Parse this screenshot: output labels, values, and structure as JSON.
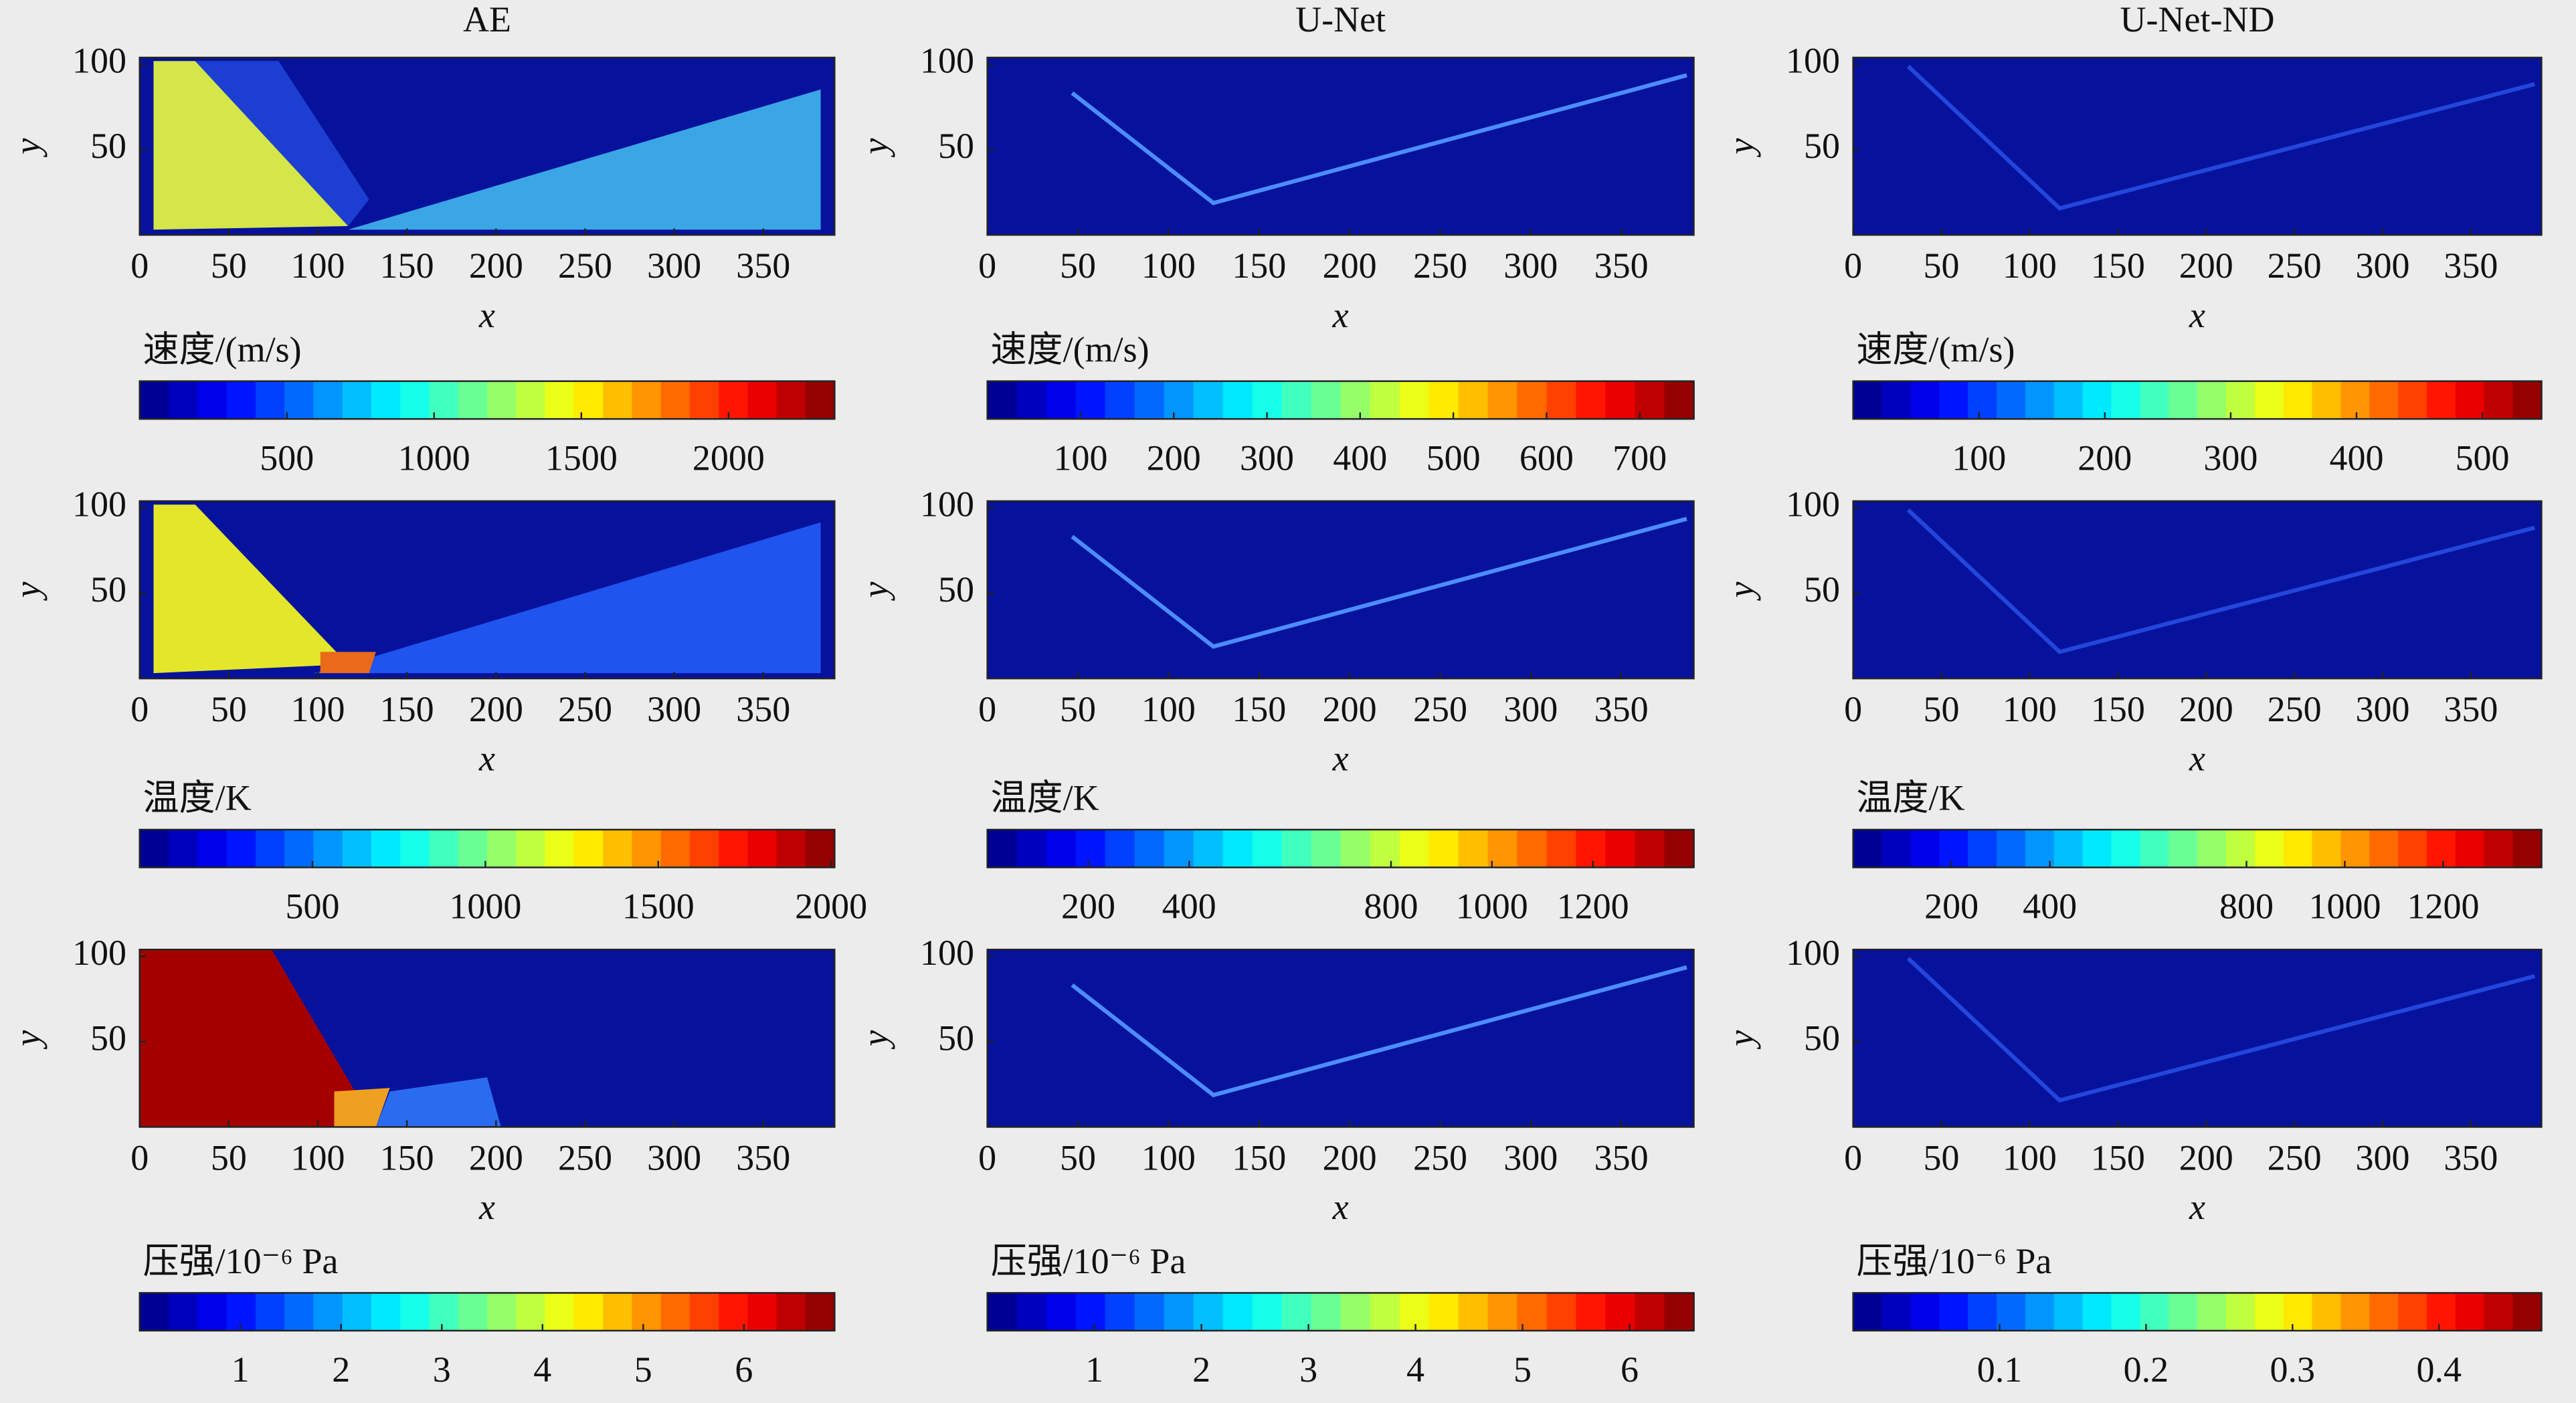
{
  "chart_data": [
    {
      "type": "heatmap",
      "title": "AE",
      "xlabel": "x",
      "ylabel": "y",
      "xlim": [
        0,
        390
      ],
      "xticks": [
        0,
        50,
        100,
        150,
        200,
        250,
        300,
        350
      ],
      "ylim": [
        0,
        104
      ],
      "yticks": [
        50,
        100
      ],
      "colorbar": {
        "label": "速度/(m/s)",
        "colormap": "jet",
        "lim": [
          0,
          2360
        ],
        "ticks": [
          500,
          1000,
          1500,
          2000
        ]
      }
    },
    {
      "type": "heatmap",
      "title": "U-Net",
      "xlabel": "x",
      "ylabel": "y",
      "xlim": [
        0,
        390
      ],
      "xticks": [
        0,
        50,
        100,
        150,
        200,
        250,
        300,
        350
      ],
      "ylim": [
        0,
        104
      ],
      "yticks": [
        50,
        100
      ],
      "colorbar": {
        "label": "速度/(m/s)",
        "colormap": "jet",
        "lim": [
          0,
          758
        ],
        "ticks": [
          100,
          200,
          300,
          400,
          500,
          600,
          700
        ]
      }
    },
    {
      "type": "heatmap",
      "title": "U-Net-ND",
      "xlabel": "x",
      "ylabel": "y",
      "xlim": [
        0,
        390
      ],
      "xticks": [
        0,
        50,
        100,
        150,
        200,
        250,
        300,
        350
      ],
      "ylim": [
        0,
        104
      ],
      "yticks": [
        50,
        100
      ],
      "colorbar": {
        "label": "速度/(m/s)",
        "colormap": "jet",
        "lim": [
          0,
          547
        ],
        "ticks": [
          100,
          200,
          300,
          400,
          500
        ]
      }
    },
    {
      "type": "heatmap",
      "xlabel": "x",
      "ylabel": "y",
      "xlim": [
        0,
        390
      ],
      "xticks": [
        0,
        50,
        100,
        150,
        200,
        250,
        300,
        350
      ],
      "ylim": [
        0,
        104
      ],
      "yticks": [
        50,
        100
      ],
      "colorbar": {
        "label": "温度/K",
        "colormap": "jet",
        "lim": [
          0,
          2010
        ],
        "ticks": [
          500,
          1000,
          1500,
          2000
        ]
      }
    },
    {
      "type": "heatmap",
      "xlabel": "x",
      "ylabel": "y",
      "xlim": [
        0,
        390
      ],
      "xticks": [
        0,
        50,
        100,
        150,
        200,
        250,
        300,
        350
      ],
      "ylim": [
        0,
        104
      ],
      "yticks": [
        50,
        100
      ],
      "colorbar": {
        "label": "温度/K",
        "colormap": "jet",
        "lim": [
          0,
          1400
        ],
        "ticks": [
          200,
          400,
          800,
          1000,
          1200
        ]
      }
    },
    {
      "type": "heatmap",
      "xlabel": "x",
      "ylabel": "y",
      "xlim": [
        0,
        390
      ],
      "xticks": [
        0,
        50,
        100,
        150,
        200,
        250,
        300,
        350
      ],
      "ylim": [
        0,
        104
      ],
      "yticks": [
        50,
        100
      ],
      "colorbar": {
        "label": "温度/K",
        "colormap": "jet",
        "lim": [
          0,
          1400
        ],
        "ticks": [
          200,
          400,
          800,
          1000,
          1200
        ]
      }
    },
    {
      "type": "heatmap",
      "xlabel": "x",
      "ylabel": "y",
      "xlim": [
        0,
        390
      ],
      "xticks": [
        0,
        50,
        100,
        150,
        200,
        250,
        300,
        350
      ],
      "ylim": [
        0,
        104
      ],
      "yticks": [
        50,
        100
      ],
      "colorbar": {
        "label": "压强/10⁻⁶ Pa",
        "colormap": "jet",
        "lim": [
          0,
          6.9
        ],
        "ticks": [
          1,
          2,
          3,
          4,
          5,
          6
        ]
      }
    },
    {
      "type": "heatmap",
      "xlabel": "x",
      "ylabel": "y",
      "xlim": [
        0,
        390
      ],
      "xticks": [
        0,
        50,
        100,
        150,
        200,
        250,
        300,
        350
      ],
      "ylim": [
        0,
        104
      ],
      "yticks": [
        50,
        100
      ],
      "colorbar": {
        "label": "压强/10⁻⁶ Pa",
        "colormap": "jet",
        "lim": [
          0,
          6.6
        ],
        "ticks": [
          1,
          2,
          3,
          4,
          5,
          6
        ]
      }
    },
    {
      "type": "heatmap",
      "xlabel": "x",
      "ylabel": "y",
      "xlim": [
        0,
        390
      ],
      "xticks": [
        0,
        50,
        100,
        150,
        200,
        250,
        300,
        350
      ],
      "ylim": [
        0,
        104
      ],
      "yticks": [
        50,
        100
      ],
      "colorbar": {
        "label": "压强/10⁻⁶ Pa",
        "colormap": "jet",
        "lim": [
          0,
          0.47
        ],
        "ticks": [
          0.1,
          0.2,
          0.3,
          0.4
        ]
      }
    }
  ]
}
